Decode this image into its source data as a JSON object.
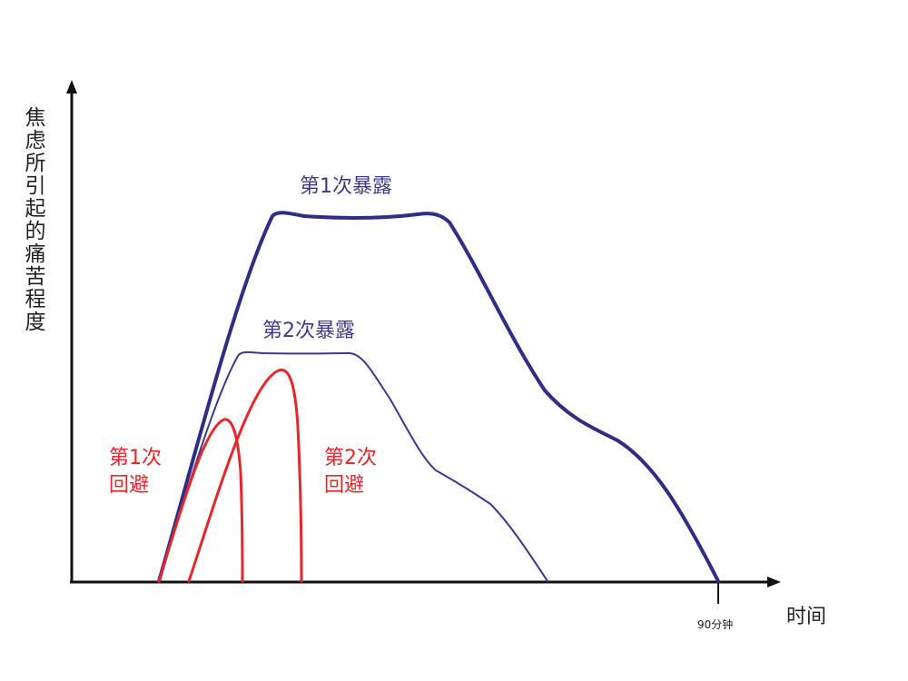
{
  "y_axis_label": "焦虑所引起的痛苦程度",
  "x_axis_label": "时间",
  "x_tick_label": "90分钟",
  "curves": [
    {
      "name": "exposure-1",
      "label": "第1次暴露",
      "color": "#2e2e86"
    },
    {
      "name": "exposure-2",
      "label": "第2次暴露",
      "color": "#3a3a8e"
    },
    {
      "name": "avoidance-1",
      "label_line1": "第1次",
      "label_line2": "回避",
      "color": "#e8252a"
    },
    {
      "name": "avoidance-2",
      "label_line1": "第2次",
      "label_line2": "回避",
      "color": "#e8252a"
    }
  ]
}
